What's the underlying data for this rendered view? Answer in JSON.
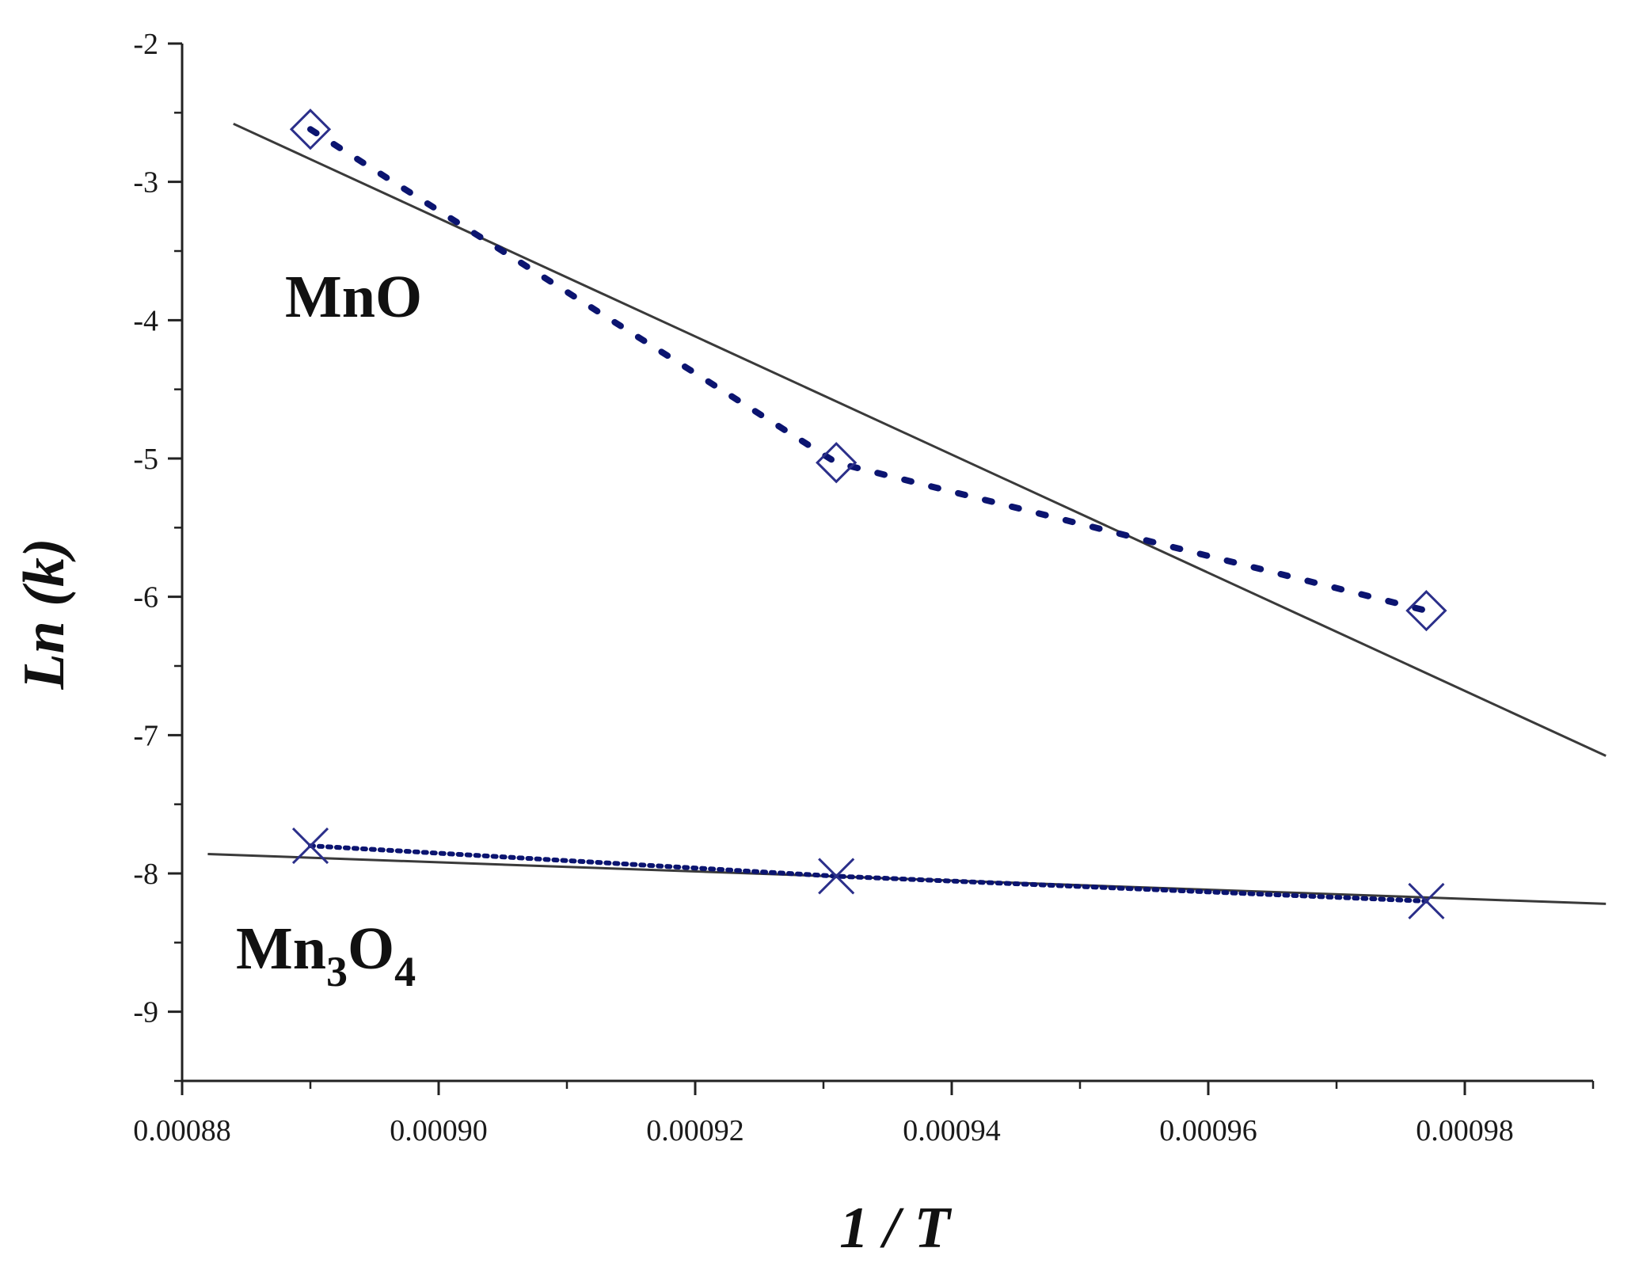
{
  "chart_data": {
    "type": "scatter",
    "title": "",
    "xlabel": "1 / T",
    "ylabel": "Ln (k)",
    "xlim": [
      0.00088,
      0.00099
    ],
    "ylim": [
      -9.5,
      -2
    ],
    "x_ticks": [
      0.00088,
      0.0009,
      0.00092,
      0.00094,
      0.00096,
      0.00098
    ],
    "x_tick_labels": [
      "0.00088",
      "0.00090",
      "0.00092",
      "0.00094",
      "0.00096",
      "0.00098"
    ],
    "y_ticks": [
      -9,
      -8,
      -7,
      -6,
      -5,
      -4,
      -3,
      -2
    ],
    "y_tick_labels": [
      "-9",
      "-8",
      "-7",
      "-6",
      "-5",
      "-4",
      "-3",
      "-2"
    ],
    "grid": false,
    "series": [
      {
        "name": "MnO",
        "label_text": "MnO",
        "marker": "diamond",
        "color": "#2b2f8a",
        "x": [
          0.00089,
          0.000931,
          0.000977
        ],
        "y": [
          -2.62,
          -5.03,
          -6.1
        ],
        "fit": {
          "x": [
            0.000884,
            0.000991
          ],
          "y": [
            -2.58,
            -7.15
          ]
        }
      },
      {
        "name": "Mn3O4",
        "label_main": "Mn",
        "label_sub1": "3",
        "label_mid": "O",
        "label_sub2": "4",
        "marker": "x",
        "color": "#2b2f8a",
        "x": [
          0.00089,
          0.000931,
          0.000977
        ],
        "y": [
          -7.8,
          -8.02,
          -8.2
        ],
        "fit": {
          "x": [
            0.000882,
            0.000991
          ],
          "y": [
            -7.86,
            -8.22
          ]
        }
      }
    ],
    "colors": {
      "axis": "#222222",
      "fit_line": "#3a3a3a",
      "dotted_line": "#0b1470",
      "marker": "#2b2f8a"
    }
  }
}
